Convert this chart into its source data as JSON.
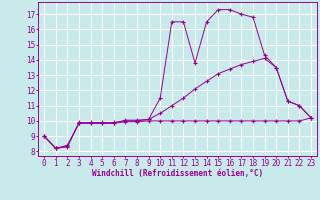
{
  "bg_color": "#c8eaea",
  "line_color": "#990099",
  "grid_color": "#ffffff",
  "xlabel": "Windchill (Refroidissement éolien,°C)",
  "xlim": [
    -0.5,
    23.5
  ],
  "ylim": [
    7.7,
    17.8
  ],
  "yticks": [
    8,
    9,
    10,
    11,
    12,
    13,
    14,
    15,
    16,
    17
  ],
  "xticks": [
    0,
    1,
    2,
    3,
    4,
    5,
    6,
    7,
    8,
    9,
    10,
    11,
    12,
    13,
    14,
    15,
    16,
    17,
    18,
    19,
    20,
    21,
    22,
    23
  ],
  "line1_x": [
    0,
    1,
    2,
    3,
    4,
    5,
    6,
    7,
    8,
    9,
    10,
    11,
    12,
    13,
    14,
    15,
    16,
    17,
    18,
    19,
    20,
    21,
    22,
    23
  ],
  "line1_y": [
    9.0,
    8.2,
    8.3,
    9.9,
    9.9,
    9.9,
    9.9,
    10.0,
    10.0,
    10.1,
    11.5,
    16.5,
    16.5,
    13.8,
    16.5,
    17.3,
    17.3,
    17.0,
    16.8,
    14.3,
    13.5,
    11.3,
    11.0,
    10.2
  ],
  "line2_x": [
    0,
    1,
    2,
    3,
    4,
    5,
    6,
    7,
    8,
    9,
    10,
    11,
    12,
    13,
    14,
    15,
    16,
    17,
    18,
    19,
    20,
    21,
    22,
    23
  ],
  "line2_y": [
    9.0,
    8.2,
    8.35,
    9.85,
    9.85,
    9.85,
    9.85,
    9.95,
    9.95,
    10.0,
    10.0,
    10.0,
    10.0,
    10.0,
    10.0,
    10.0,
    10.0,
    10.0,
    10.0,
    10.0,
    10.0,
    10.0,
    10.0,
    10.2
  ],
  "line3_x": [
    0,
    1,
    2,
    3,
    4,
    5,
    6,
    7,
    8,
    9,
    10,
    11,
    12,
    13,
    14,
    15,
    16,
    17,
    18,
    19,
    20,
    21,
    22,
    23
  ],
  "line3_y": [
    9.0,
    8.2,
    8.4,
    9.85,
    9.85,
    9.85,
    9.85,
    10.05,
    10.05,
    10.1,
    10.5,
    11.0,
    11.5,
    12.1,
    12.6,
    13.1,
    13.4,
    13.7,
    13.9,
    14.1,
    13.5,
    11.3,
    11.0,
    10.2
  ]
}
